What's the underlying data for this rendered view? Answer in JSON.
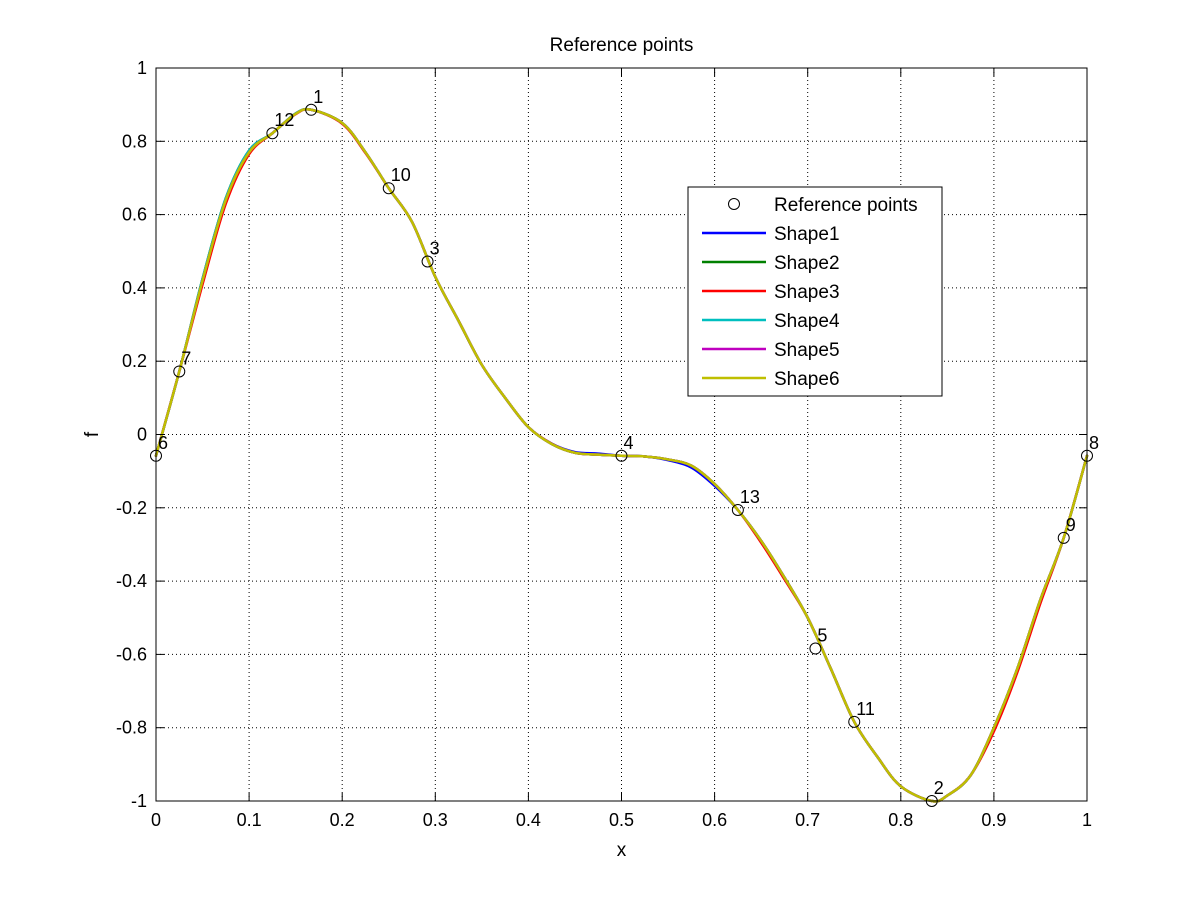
{
  "chart_data": {
    "type": "line",
    "title": "Reference points",
    "xlabel": "x",
    "ylabel": "f",
    "xlim": [
      0,
      1
    ],
    "ylim": [
      -1,
      1
    ],
    "xticks": [
      0,
      0.1,
      0.2,
      0.3,
      0.4,
      0.5,
      0.6,
      0.7,
      0.8,
      0.9,
      1
    ],
    "xtick_labels": [
      "0",
      "0.1",
      "0.2",
      "0.3",
      "0.4",
      "0.5",
      "0.6",
      "0.7",
      "0.8",
      "0.9",
      "1"
    ],
    "yticks": [
      1,
      0.8,
      0.6,
      0.4,
      0.2,
      0,
      -0.2,
      -0.4,
      -0.6,
      -0.8,
      -1
    ],
    "ytick_labels": [
      "1",
      "0.8",
      "0.6",
      "0.4",
      "0.2",
      "0",
      "-0.2",
      "-0.4",
      "-0.6",
      "-0.8",
      "-1"
    ],
    "grid": true,
    "legend_position": "upper-right",
    "reference_points": {
      "name": "Reference points",
      "points": [
        {
          "label": "1",
          "x": 0.1667,
          "y": 0.886
        },
        {
          "label": "2",
          "x": 0.8333,
          "y": -1.0
        },
        {
          "label": "3",
          "x": 0.2917,
          "y": 0.472
        },
        {
          "label": "4",
          "x": 0.5,
          "y": -0.058
        },
        {
          "label": "5",
          "x": 0.7083,
          "y": -0.584
        },
        {
          "label": "6",
          "x": 0.0,
          "y": -0.058
        },
        {
          "label": "7",
          "x": 0.025,
          "y": 0.172
        },
        {
          "label": "8",
          "x": 1.0,
          "y": -0.058
        },
        {
          "label": "9",
          "x": 0.975,
          "y": -0.282
        },
        {
          "label": "10",
          "x": 0.25,
          "y": 0.672
        },
        {
          "label": "11",
          "x": 0.75,
          "y": -0.784
        },
        {
          "label": "12",
          "x": 0.125,
          "y": 0.822
        },
        {
          "label": "13",
          "x": 0.625,
          "y": -0.206
        }
      ]
    },
    "x": [
      0,
      0.025,
      0.05,
      0.075,
      0.1,
      0.125,
      0.15,
      0.1667,
      0.2,
      0.225,
      0.25,
      0.275,
      0.3,
      0.325,
      0.35,
      0.375,
      0.4,
      0.425,
      0.45,
      0.475,
      0.5,
      0.525,
      0.55,
      0.575,
      0.6,
      0.625,
      0.65,
      0.675,
      0.7,
      0.725,
      0.75,
      0.775,
      0.8,
      0.8333,
      0.85,
      0.875,
      0.9,
      0.925,
      0.95,
      0.975,
      1.0
    ],
    "series": [
      {
        "name": "Shape1",
        "color": "#0000ff",
        "values": [
          -0.058,
          0.172,
          0.42,
          0.64,
          0.77,
          0.822,
          0.875,
          0.886,
          0.85,
          0.77,
          0.672,
          0.58,
          0.43,
          0.31,
          0.19,
          0.1,
          0.02,
          -0.025,
          -0.048,
          -0.052,
          -0.058,
          -0.06,
          -0.07,
          -0.09,
          -0.14,
          -0.206,
          -0.29,
          -0.39,
          -0.5,
          -0.64,
          -0.784,
          -0.88,
          -0.96,
          -1.0,
          -0.985,
          -0.93,
          -0.8,
          -0.64,
          -0.45,
          -0.282,
          -0.058
        ]
      },
      {
        "name": "Shape2",
        "color": "#008000",
        "values": [
          -0.058,
          0.172,
          0.425,
          0.645,
          0.775,
          0.822,
          0.876,
          0.886,
          0.85,
          0.77,
          0.672,
          0.58,
          0.43,
          0.31,
          0.19,
          0.1,
          0.02,
          -0.026,
          -0.05,
          -0.055,
          -0.058,
          -0.06,
          -0.068,
          -0.085,
          -0.135,
          -0.206,
          -0.29,
          -0.39,
          -0.5,
          -0.64,
          -0.784,
          -0.88,
          -0.96,
          -1.0,
          -0.985,
          -0.93,
          -0.8,
          -0.64,
          -0.45,
          -0.282,
          -0.058
        ]
      },
      {
        "name": "Shape3",
        "color": "#ff0000",
        "values": [
          -0.058,
          0.172,
          0.41,
          0.63,
          0.765,
          0.822,
          0.874,
          0.886,
          0.848,
          0.768,
          0.672,
          0.58,
          0.43,
          0.31,
          0.19,
          0.1,
          0.02,
          -0.025,
          -0.05,
          -0.055,
          -0.058,
          -0.06,
          -0.068,
          -0.085,
          -0.135,
          -0.206,
          -0.295,
          -0.395,
          -0.5,
          -0.64,
          -0.784,
          -0.88,
          -0.96,
          -1.0,
          -0.985,
          -0.93,
          -0.81,
          -0.65,
          -0.46,
          -0.282,
          -0.058
        ]
      },
      {
        "name": "Shape4",
        "color": "#00bfbf",
        "values": [
          -0.058,
          0.172,
          0.425,
          0.645,
          0.775,
          0.822,
          0.876,
          0.886,
          0.85,
          0.77,
          0.672,
          0.58,
          0.43,
          0.31,
          0.19,
          0.1,
          0.02,
          -0.026,
          -0.05,
          -0.055,
          -0.058,
          -0.06,
          -0.068,
          -0.085,
          -0.135,
          -0.206,
          -0.29,
          -0.39,
          -0.5,
          -0.64,
          -0.784,
          -0.88,
          -0.96,
          -1.0,
          -0.985,
          -0.93,
          -0.8,
          -0.64,
          -0.45,
          -0.282,
          -0.058
        ]
      },
      {
        "name": "Shape5",
        "color": "#bf00bf",
        "values": [
          -0.058,
          0.172,
          0.42,
          0.64,
          0.77,
          0.822,
          0.875,
          0.886,
          0.85,
          0.77,
          0.672,
          0.58,
          0.43,
          0.31,
          0.19,
          0.1,
          0.02,
          -0.026,
          -0.05,
          -0.055,
          -0.058,
          -0.06,
          -0.068,
          -0.085,
          -0.135,
          -0.206,
          -0.29,
          -0.39,
          -0.5,
          -0.64,
          -0.784,
          -0.88,
          -0.96,
          -1.0,
          -0.985,
          -0.93,
          -0.8,
          -0.64,
          -0.45,
          -0.282,
          -0.058
        ]
      },
      {
        "name": "Shape6",
        "color": "#bfbf00",
        "values": [
          -0.058,
          0.172,
          0.42,
          0.64,
          0.77,
          0.822,
          0.875,
          0.886,
          0.85,
          0.77,
          0.672,
          0.58,
          0.43,
          0.31,
          0.19,
          0.1,
          0.02,
          -0.026,
          -0.05,
          -0.055,
          -0.058,
          -0.06,
          -0.068,
          -0.085,
          -0.135,
          -0.206,
          -0.29,
          -0.39,
          -0.5,
          -0.64,
          -0.784,
          -0.88,
          -0.96,
          -1.0,
          -0.985,
          -0.93,
          -0.8,
          -0.64,
          -0.45,
          -0.282,
          -0.058
        ]
      }
    ]
  }
}
